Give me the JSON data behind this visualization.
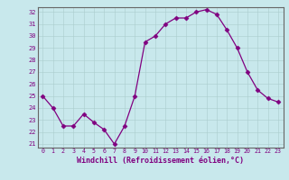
{
  "x": [
    0,
    1,
    2,
    3,
    4,
    5,
    6,
    7,
    8,
    9,
    10,
    11,
    12,
    13,
    14,
    15,
    16,
    17,
    18,
    19,
    20,
    21,
    22,
    23
  ],
  "y": [
    25.0,
    24.0,
    22.5,
    22.5,
    23.5,
    22.8,
    22.2,
    21.0,
    22.5,
    25.0,
    29.5,
    30.0,
    31.0,
    31.5,
    31.5,
    32.0,
    32.2,
    31.8,
    30.5,
    29.0,
    27.0,
    25.5,
    24.8,
    24.5
  ],
  "line_color": "#800080",
  "marker": "D",
  "marker_size": 2.5,
  "bg_color": "#c8e8ec",
  "grid_color": "#aacccc",
  "xlabel": "Windchill (Refroidissement éolien,°C)",
  "xlabel_color": "#800080",
  "tick_color": "#800080",
  "ylim": [
    21,
    32
  ],
  "yticks": [
    21,
    22,
    23,
    24,
    25,
    26,
    27,
    28,
    29,
    30,
    31,
    32
  ],
  "xticks": [
    0,
    1,
    2,
    3,
    4,
    5,
    6,
    7,
    8,
    9,
    10,
    11,
    12,
    13,
    14,
    15,
    16,
    17,
    18,
    19,
    20,
    21,
    22,
    23
  ],
  "spine_color": "#666666"
}
